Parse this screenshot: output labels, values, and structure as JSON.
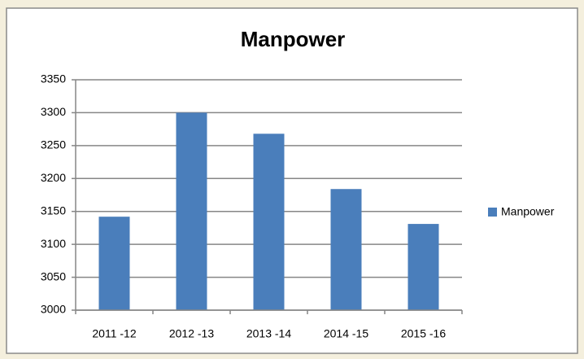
{
  "chart_data": {
    "type": "bar",
    "title": "Manpower",
    "categories": [
      "2011 -12",
      "2012 -13",
      "2013 -14",
      "2014 -15",
      "2015 -16"
    ],
    "series": [
      {
        "name": "Manpower",
        "color": "#4a7ebb",
        "values": [
          3142,
          3300,
          3268,
          3184,
          3131
        ]
      }
    ],
    "ylim": [
      3000,
      3350
    ],
    "yticks": [
      3000,
      3050,
      3100,
      3150,
      3200,
      3250,
      3300,
      3350
    ],
    "grid": true,
    "legend": "right"
  }
}
